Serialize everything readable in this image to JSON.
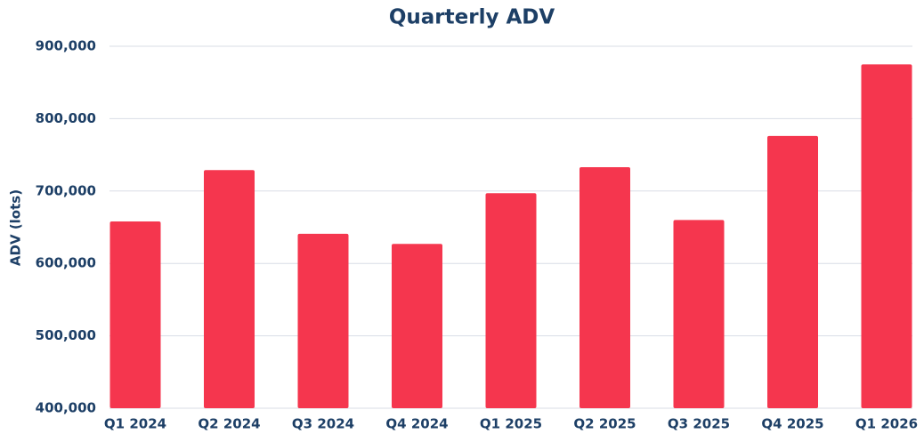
{
  "chart_data": {
    "type": "bar",
    "title": "Quarterly ADV",
    "y_label": "ADV (lots)",
    "categories": [
      "Q1 2024",
      "Q2 2024",
      "Q3 2024",
      "Q4 2024",
      "Q1 2025",
      "Q2 2025",
      "Q3 2025",
      "Q4 2025",
      "Q1 2026"
    ],
    "values": [
      658000,
      729000,
      641000,
      627000,
      697000,
      733000,
      660000,
      776000,
      875000
    ],
    "color": "#f5364e",
    "ylim": [
      400000,
      900000
    ],
    "yticks": [
      {
        "value": 400000,
        "label": "400,000"
      },
      {
        "value": 500000,
        "label": "500,000"
      },
      {
        "value": 600000,
        "label": "600,000"
      },
      {
        "value": 700000,
        "label": "700,000"
      },
      {
        "value": 800000,
        "label": "800,000"
      },
      {
        "value": 900000,
        "label": "900,000"
      }
    ],
    "grid": true
  }
}
